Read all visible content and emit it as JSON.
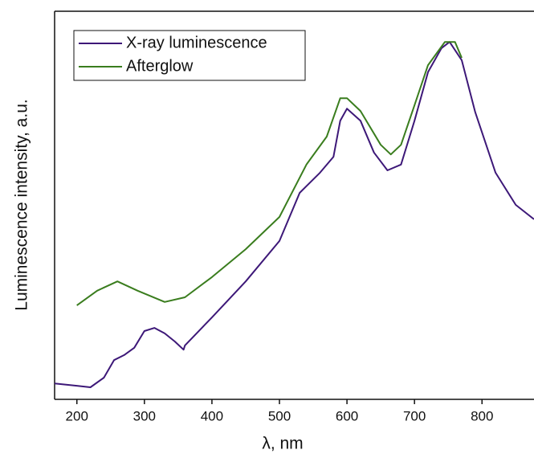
{
  "chart_data": {
    "type": "line",
    "x_label": "λ, nm",
    "y_label": "Luminescence intensity, a.u.",
    "xlim": [
      167,
      877
    ],
    "ylim": [
      0,
      100
    ],
    "xticks": [
      200,
      300,
      400,
      500,
      600,
      700,
      800
    ],
    "legend": "upper left",
    "series": [
      {
        "name": "X-ray luminescence",
        "color": "#3d1878",
        "x": [
          167,
          200,
          220,
          240,
          255,
          270,
          285,
          300,
          315,
          330,
          345,
          358,
          360,
          400,
          450,
          500,
          530,
          560,
          580,
          590,
          600,
          620,
          640,
          660,
          680,
          700,
          720,
          740,
          752,
          770,
          790,
          820,
          850,
          877
        ],
        "values": [
          4.1,
          3.5,
          3.1,
          5.6,
          10.1,
          11.4,
          13.3,
          17.6,
          18.4,
          17,
          14.9,
          12.8,
          13.9,
          21.1,
          30.4,
          40.8,
          53.2,
          58.4,
          62.5,
          71.8,
          74.9,
          71.8,
          63.6,
          59,
          60.5,
          71.8,
          84.3,
          90.5,
          92.1,
          87.4,
          74,
          58.4,
          50.1,
          46.4
        ]
      },
      {
        "name": "Afterglow",
        "color": "#3a7d1e",
        "x": [
          200,
          230,
          260,
          290,
          330,
          360,
          400,
          450,
          500,
          540,
          570,
          590,
          600,
          620,
          650,
          665,
          680,
          700,
          720,
          745,
          760,
          770
        ],
        "values": [
          24.2,
          28,
          30.4,
          28,
          25.1,
          26.3,
          31.5,
          38.7,
          47,
          60.5,
          67.7,
          77.6,
          77.6,
          74.3,
          65.6,
          63.1,
          65.6,
          75.8,
          86.1,
          92.1,
          92.1,
          88
        ]
      }
    ]
  }
}
